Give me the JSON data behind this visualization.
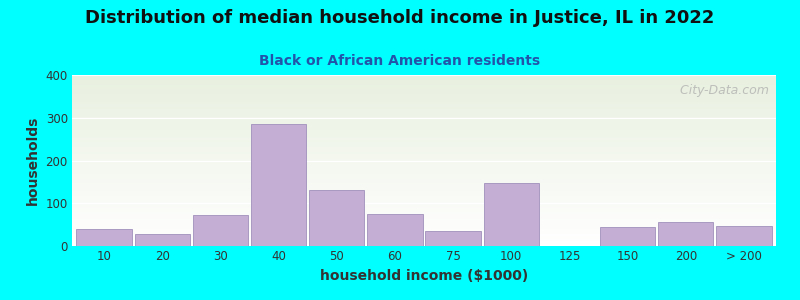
{
  "title": "Distribution of median household income in Justice, IL in 2022",
  "subtitle": "Black or African American residents",
  "xlabel": "household income ($1000)",
  "ylabel": "households",
  "background_color": "#00FFFF",
  "plot_bg_top": "#e8f0e0",
  "plot_bg_bottom": "#ffffff",
  "bar_color": "#c4aed4",
  "bar_edge_color": "#a090bc",
  "categories": [
    "10",
    "20",
    "30",
    "40",
    "50",
    "60",
    "75",
    "100",
    "125",
    "150",
    "200",
    "> 200"
  ],
  "values": [
    40,
    28,
    72,
    285,
    130,
    75,
    35,
    148,
    0,
    45,
    57,
    47
  ],
  "ylim": [
    0,
    400
  ],
  "yticks": [
    0,
    100,
    200,
    300,
    400
  ],
  "title_fontsize": 13,
  "subtitle_fontsize": 10,
  "tick_fontsize": 8.5,
  "axis_label_fontsize": 10,
  "watermark": "   City-Data.com"
}
